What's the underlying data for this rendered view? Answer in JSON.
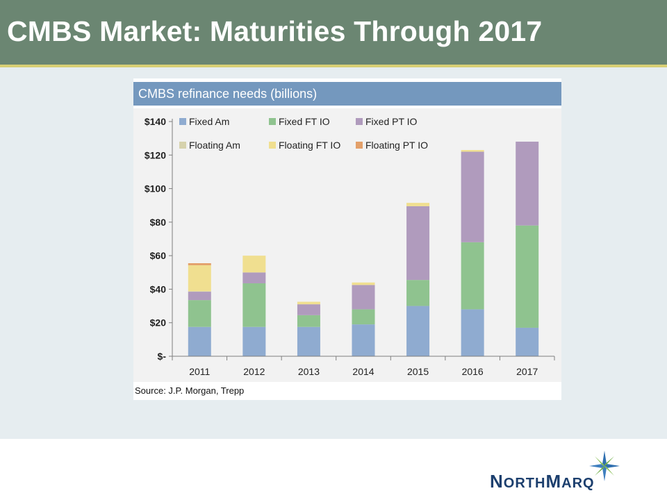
{
  "slide": {
    "title": "CMBS Market: Maturities Through 2017"
  },
  "chart_panel": {
    "title": "CMBS refinance needs (billions)",
    "source": "Source: J.P. Morgan, Trepp"
  },
  "brand": {
    "logo_text_parts": [
      "N",
      "ORTH",
      "M",
      "ARQ"
    ],
    "logo_name": "NorthMarq"
  },
  "colors": {
    "header_bg": "#6b8672",
    "header_accent": "#d8cf74",
    "chart_titlebar": "#7498be"
  },
  "chart_data": {
    "type": "bar",
    "stacked": true,
    "title": "CMBS refinance needs (billions)",
    "xlabel": "",
    "ylabel": "",
    "categories": [
      "2011",
      "2012",
      "2013",
      "2014",
      "2015",
      "2016",
      "2017"
    ],
    "ylim": [
      0,
      140
    ],
    "yticks": [
      0,
      20,
      40,
      60,
      80,
      100,
      120,
      140
    ],
    "ytick_labels": [
      "$-",
      "$20",
      "$40",
      "$60",
      "$80",
      "$100",
      "$120",
      "$140"
    ],
    "grid": false,
    "legend_position": "top-left",
    "series": [
      {
        "name": "Fixed Am",
        "color": "#8fabd0",
        "values": [
          17.5,
          17.5,
          17.5,
          19,
          30,
          28,
          17
        ]
      },
      {
        "name": "Fixed FT IO",
        "color": "#8fc38f",
        "values": [
          16,
          26,
          7,
          9,
          15.5,
          40,
          61
        ]
      },
      {
        "name": "Fixed PT IO",
        "color": "#b09bbd",
        "values": [
          5,
          6.5,
          6.5,
          14.5,
          44,
          54,
          50
        ]
      },
      {
        "name": "Floating Am",
        "color": "#d6d2ad",
        "values": [
          0.3,
          0,
          0,
          0,
          0,
          0,
          0
        ]
      },
      {
        "name": "Floating FT IO",
        "color": "#f0df90",
        "values": [
          15.5,
          10,
          1.5,
          1.5,
          2,
          1,
          0
        ]
      },
      {
        "name": "Floating PT IO",
        "color": "#e3a06a",
        "values": [
          1.2,
          0,
          0,
          0,
          0,
          0,
          0
        ]
      }
    ]
  }
}
